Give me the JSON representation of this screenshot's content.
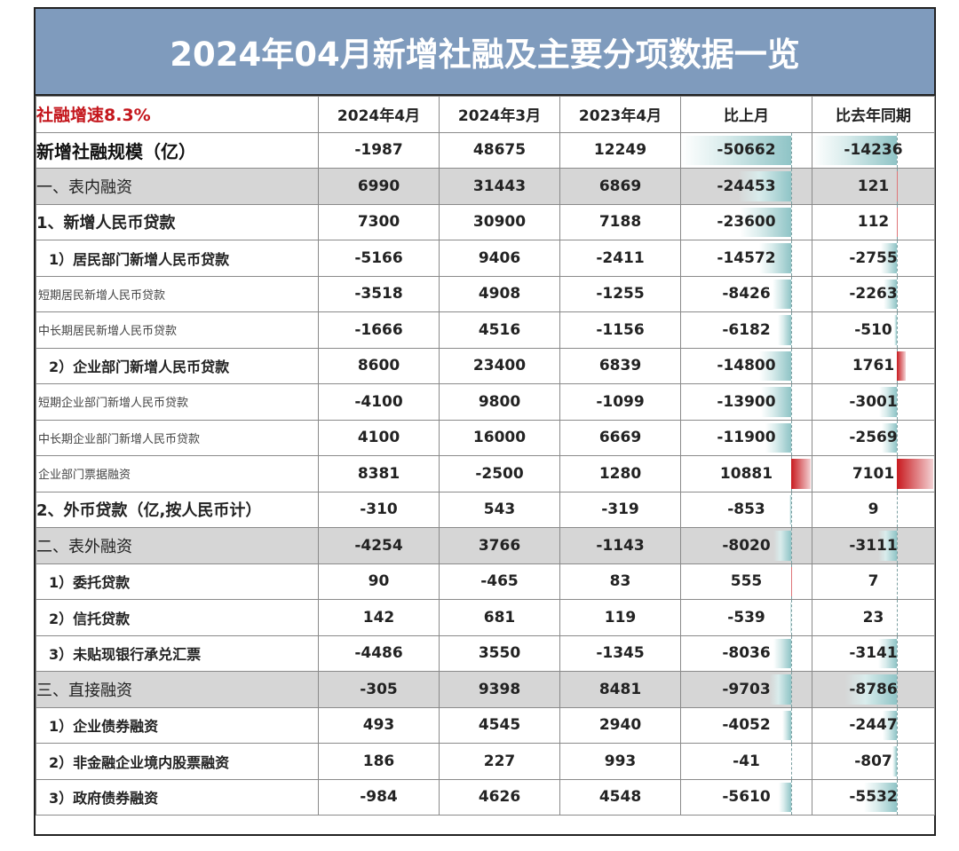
{
  "title": "2024年04月新增社融及主要分项数据一览",
  "header": {
    "growth_label": "社融增速8.3%",
    "columns": [
      "2024年4月",
      "2024年3月",
      "2023年4月",
      "比上月",
      "比去年同期"
    ]
  },
  "rows": [
    {
      "label": "新增社融规模（亿）",
      "level": "top",
      "values": [
        "-1987",
        "48675",
        "12249",
        "-50662",
        "-14236"
      ]
    },
    {
      "label": "一、表内融资",
      "level": "section",
      "values": [
        "6990",
        "31443",
        "6869",
        "-24453",
        "121"
      ]
    },
    {
      "label": "1、新增人民币贷款",
      "level": "main",
      "values": [
        "7300",
        "30900",
        "7188",
        "-23600",
        "112"
      ]
    },
    {
      "label": "1）居民部门新增人民币贷款",
      "level": "sub",
      "values": [
        "-5166",
        "9406",
        "-2411",
        "-14572",
        "-2755"
      ]
    },
    {
      "label": "短期居民新增人民币贷款",
      "level": "detail",
      "values": [
        "-3518",
        "4908",
        "-1255",
        "-8426",
        "-2263"
      ]
    },
    {
      "label": "中长期居民新增人民币贷款",
      "level": "detail",
      "values": [
        "-1666",
        "4516",
        "-1156",
        "-6182",
        "-510"
      ]
    },
    {
      "label": "2）企业部门新增人民币贷款",
      "level": "sub",
      "values": [
        "8600",
        "23400",
        "6839",
        "-14800",
        "1761"
      ]
    },
    {
      "label": "短期企业部门新增人民币贷款",
      "level": "detail",
      "values": [
        "-4100",
        "9800",
        "-1099",
        "-13900",
        "-3001"
      ]
    },
    {
      "label": "中长期企业部门新增人民币贷款",
      "level": "detail",
      "values": [
        "4100",
        "16000",
        "6669",
        "-11900",
        "-2569"
      ]
    },
    {
      "label": "企业部门票据融资",
      "level": "detail",
      "values": [
        "8381",
        "-2500",
        "1280",
        "10881",
        "7101"
      ]
    },
    {
      "label": "2、外币贷款（亿,按人民币计）",
      "level": "main",
      "values": [
        "-310",
        "543",
        "-319",
        "-853",
        "9"
      ]
    },
    {
      "label": "二、表外融资",
      "level": "section",
      "values": [
        "-4254",
        "3766",
        "-1143",
        "-8020",
        "-3111"
      ]
    },
    {
      "label": "1）委托贷款",
      "level": "sub",
      "values": [
        "90",
        "-465",
        "83",
        "555",
        "7"
      ]
    },
    {
      "label": "2）信托贷款",
      "level": "sub",
      "values": [
        "142",
        "681",
        "119",
        "-539",
        "23"
      ]
    },
    {
      "label": "3）未贴现银行承兑汇票",
      "level": "sub",
      "values": [
        "-4486",
        "3550",
        "-1345",
        "-8036",
        "-3141"
      ]
    },
    {
      "label": "三、直接融资",
      "level": "section",
      "values": [
        "-305",
        "9398",
        "8481",
        "-9703",
        "-8786"
      ]
    },
    {
      "label": "1）企业债券融资",
      "level": "sub",
      "values": [
        "493",
        "4545",
        "2940",
        "-4052",
        "-2447"
      ]
    },
    {
      "label": "2）非金融企业境内股票融资",
      "level": "sub",
      "values": [
        "186",
        "227",
        "993",
        "-41",
        "-807"
      ]
    },
    {
      "label": "3）政府债券融资",
      "level": "sub",
      "values": [
        "-984",
        "4626",
        "4548",
        "-5610",
        "-5532"
      ]
    }
  ],
  "colors": {
    "title_bg": "#7f9bbd",
    "section_bg": "#d6d6d6",
    "growth_text": "#c4161c",
    "negative_bar": "#8fc4c6",
    "positive_bar": "#c81a1f"
  }
}
